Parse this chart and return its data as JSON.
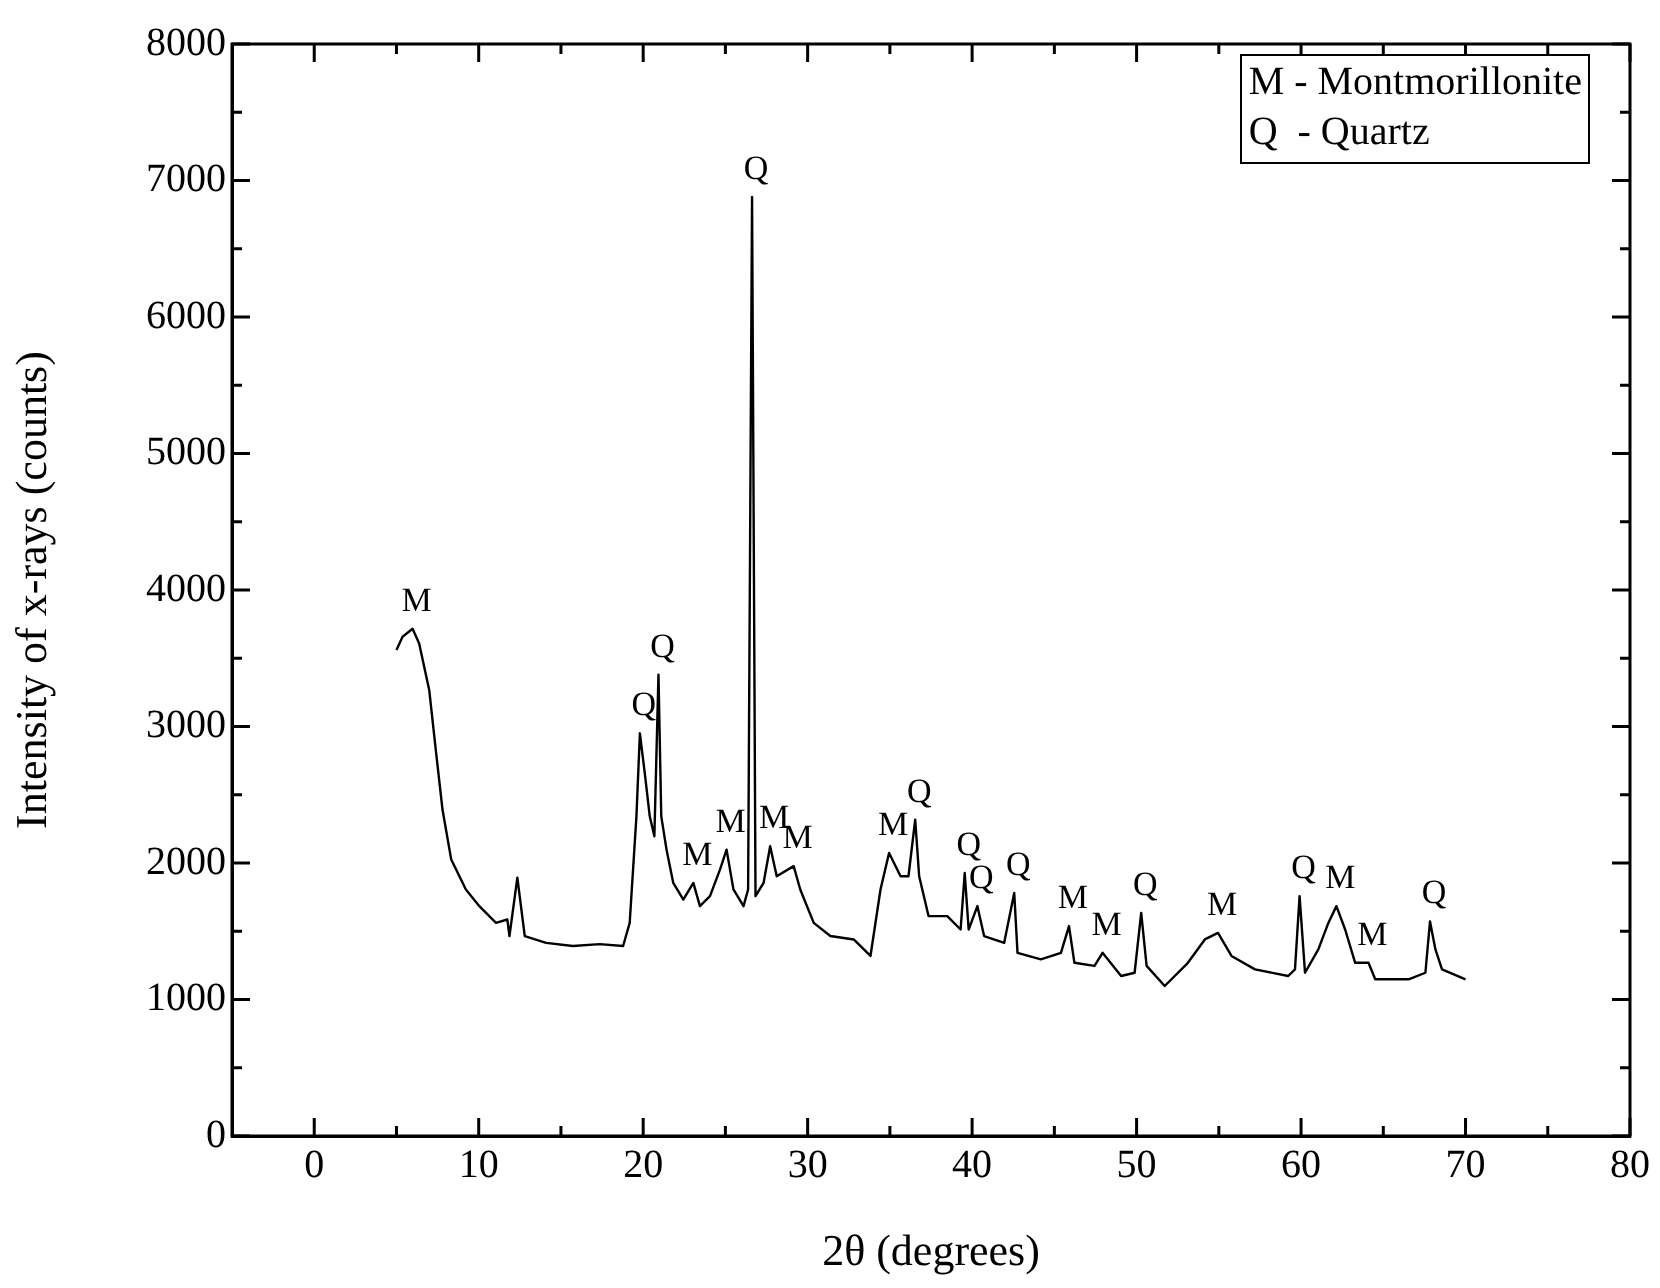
{
  "chart_data": {
    "type": "line",
    "xlabel": "2θ (degrees)",
    "ylabel": "Intensity of x-rays (counts)",
    "xlim": [
      -5,
      80
    ],
    "ylim": [
      0,
      8000
    ],
    "xticks": [
      0,
      {
        "value": 5,
        "label": null
      },
      10,
      {
        "value": 15,
        "label": null
      },
      20,
      {
        "value": 25,
        "label": null
      },
      30,
      {
        "value": 35,
        "label": null
      },
      40,
      {
        "value": 45,
        "label": null
      },
      50,
      {
        "value": 55,
        "label": null
      },
      60,
      {
        "value": 65,
        "label": null
      },
      70,
      {
        "value": 75,
        "label": null
      },
      80
    ],
    "yticks": [
      0,
      {
        "value": 500,
        "label": null
      },
      1000,
      {
        "value": 1500,
        "label": null
      },
      2000,
      {
        "value": 2500,
        "label": null
      },
      3000,
      {
        "value": 3500,
        "label": null
      },
      4000,
      {
        "value": 4500,
        "label": null
      },
      5000,
      {
        "value": 5500,
        "label": null
      },
      6000,
      {
        "value": 6500,
        "label": null
      },
      7000,
      {
        "value": 7500,
        "label": null
      },
      8000
    ],
    "grid": false,
    "legend": false,
    "marker": "none",
    "line_style": "solid",
    "series": [
      {
        "color": "#000000",
        "x": [
          5.0,
          5.37,
          5.98,
          6.38,
          6.99,
          7.39,
          7.8,
          8.33,
          9.22,
          10.04,
          11.05,
          11.74,
          11.87,
          12.35,
          12.8,
          14.1,
          15.73,
          17.35,
          18.78,
          19.18,
          19.59,
          19.8,
          20.12,
          20.4,
          20.68,
          20.93,
          21.1,
          21.42,
          21.83,
          22.44,
          23.05,
          23.45,
          24.06,
          24.67,
          25.07,
          25.49,
          26.1,
          26.38,
          26.62,
          26.83,
          27.32,
          27.72,
          28.12,
          29.15,
          29.55,
          30.37,
          31.38,
          32.8,
          33.82,
          34.43,
          34.95,
          35.65,
          36.13,
          36.54,
          36.78,
          37.35,
          38.49,
          39.3,
          39.55,
          39.79,
          40.32,
          40.73,
          41.95,
          42.56,
          42.76,
          44.18,
          45.4,
          45.89,
          46.22,
          47.44,
          47.93,
          49.06,
          49.88,
          50.28,
          50.61,
          51.71,
          53.12,
          54.15,
          54.95,
          55.77,
          57.2,
          59.22,
          59.63,
          59.91,
          60.24,
          61.05,
          61.66,
          62.15,
          62.68,
          63.29,
          64.1,
          64.51,
          66.54,
          67.56,
          67.84,
          68.17,
          68.57,
          70.0
        ],
        "values": [
          3560,
          3658,
          3716,
          3608,
          3268,
          2829,
          2390,
          2025,
          1806,
          1684,
          1561,
          1586,
          1465,
          1893,
          1465,
          1415,
          1392,
          1406,
          1392,
          1561,
          2342,
          2950,
          2635,
          2342,
          2196,
          3380,
          2342,
          2098,
          1854,
          1732,
          1854,
          1684,
          1757,
          1952,
          2098,
          1806,
          1684,
          1806,
          6880,
          1757,
          1854,
          2123,
          1903,
          1977,
          1806,
          1561,
          1465,
          1440,
          1319,
          1806,
          2073,
          1903,
          1903,
          2317,
          1903,
          1611,
          1611,
          1513,
          1927,
          1513,
          1684,
          1465,
          1415,
          1781,
          1342,
          1294,
          1342,
          1538,
          1269,
          1246,
          1342,
          1172,
          1196,
          1634,
          1246,
          1099,
          1269,
          1440,
          1488,
          1319,
          1221,
          1172,
          1221,
          1757,
          1196,
          1367,
          1561,
          1684,
          1513,
          1269,
          1269,
          1148,
          1148,
          1196,
          1572,
          1367,
          1221,
          1148
        ]
      }
    ],
    "annotations": [
      "M - Montmorillonite",
      "Q  - Quartz",
      {
        "text": "M",
        "x": 5.98,
        "y": 3716
      },
      {
        "text": "Q",
        "x": 19.8,
        "y": 2950
      },
      {
        "text": "Q",
        "x": 20.93,
        "y": 3380
      },
      {
        "text": "M",
        "x": 23.05,
        "y": 1854
      },
      {
        "text": "M",
        "x": 25.07,
        "y": 2098
      },
      {
        "text": "Q",
        "x": 26.62,
        "y": 6880
      },
      {
        "text": "M",
        "x": 27.72,
        "y": 2123
      },
      {
        "text": "M",
        "x": 29.15,
        "y": 1977
      },
      {
        "text": "M",
        "x": 34.95,
        "y": 2073
      },
      {
        "text": "Q",
        "x": 36.54,
        "y": 2317
      },
      {
        "text": "Q",
        "x": 39.55,
        "y": 1927
      },
      {
        "text": "Q",
        "x": 40.32,
        "y": 1684
      },
      {
        "text": "Q",
        "x": 42.56,
        "y": 1781
      },
      {
        "text": "M",
        "x": 45.89,
        "y": 1538
      },
      {
        "text": "M",
        "x": 47.93,
        "y": 1342
      },
      {
        "text": "Q",
        "x": 50.28,
        "y": 1634
      },
      {
        "text": "M",
        "x": 54.95,
        "y": 1488
      },
      {
        "text": "Q",
        "x": 59.91,
        "y": 1757
      },
      {
        "text": "M",
        "x": 62.15,
        "y": 1684
      },
      {
        "text": "M",
        "x": 64.1,
        "y": 1269
      },
      {
        "text": "Q",
        "x": 67.84,
        "y": 1572
      }
    ]
  }
}
